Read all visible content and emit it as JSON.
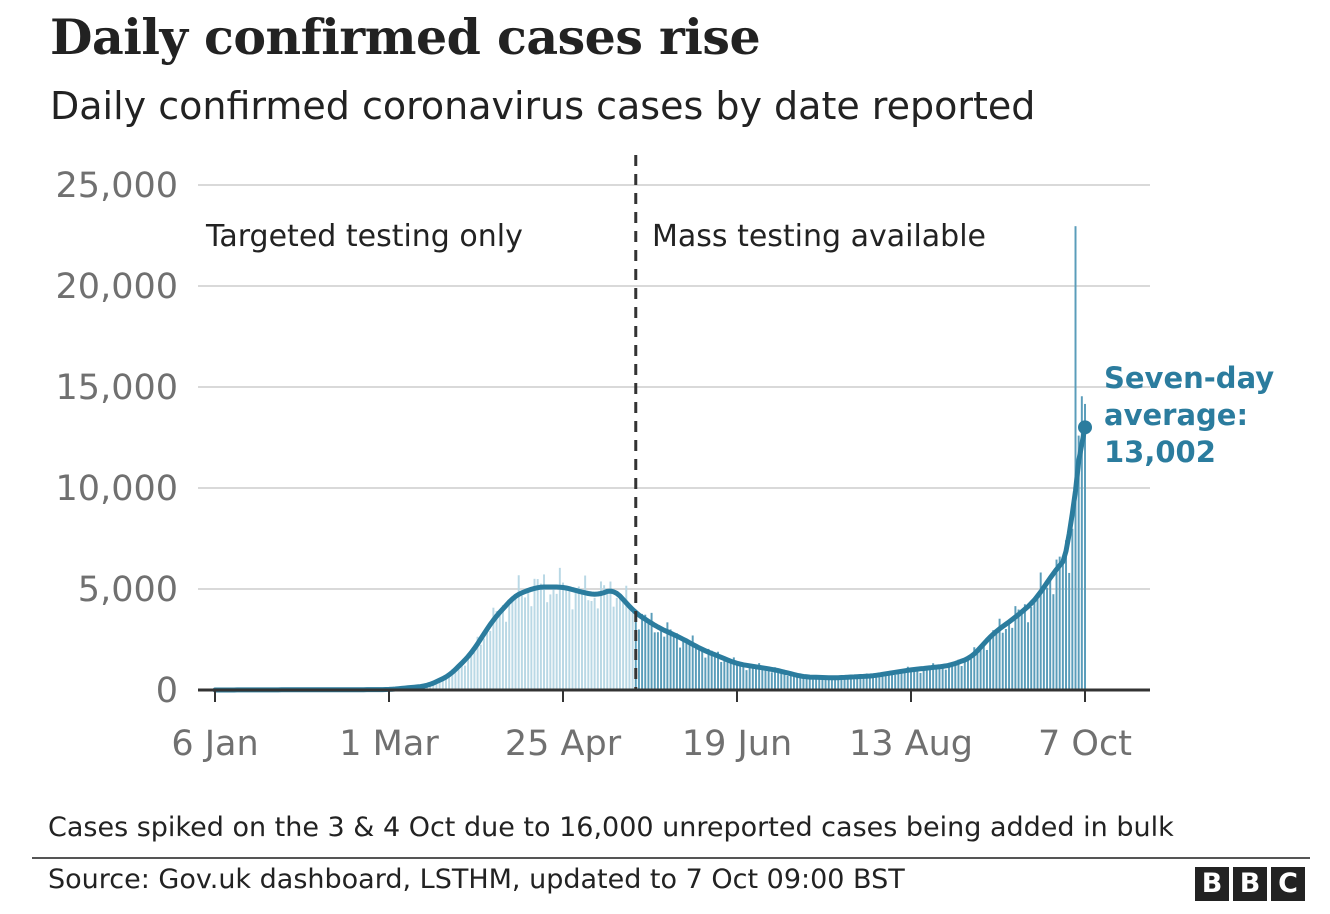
{
  "chart_data": {
    "type": "bar",
    "title": "Daily confirmed cases rise",
    "subtitle": "Daily confirmed coronavirus cases by date reported",
    "x_start": "2020-01-06",
    "x_end": "2020-10-07",
    "x_ticks": [
      {
        "date": "2020-01-06",
        "label": "6 Jan"
      },
      {
        "date": "2020-03-01",
        "label": "1 Mar"
      },
      {
        "date": "2020-04-25",
        "label": "25 Apr"
      },
      {
        "date": "2020-06-19",
        "label": "19 Jun"
      },
      {
        "date": "2020-08-13",
        "label": "13 Aug"
      },
      {
        "date": "2020-10-07",
        "label": "7 Oct"
      }
    ],
    "ylim": [
      0,
      25000
    ],
    "y_ticks": [
      {
        "value": 0,
        "label": "0"
      },
      {
        "value": 5000,
        "label": "5,000"
      },
      {
        "value": 10000,
        "label": "10,000"
      },
      {
        "value": 15000,
        "label": "15,000"
      },
      {
        "value": 20000,
        "label": "20,000"
      },
      {
        "value": 25000,
        "label": "25,000"
      }
    ],
    "grid": true,
    "divider_date": "2020-05-18",
    "phases": {
      "before": "Targeted testing only",
      "after": "Mass testing available"
    },
    "colors": {
      "before_bars": "#b9d8e5",
      "after_bars": "#5a9dba",
      "average_line": "#2b7c9e",
      "grid": "#d9d9d9",
      "axis": "#333333"
    },
    "average_anchors": [
      {
        "date": "2020-01-06",
        "value": 0
      },
      {
        "date": "2020-03-01",
        "value": 20
      },
      {
        "date": "2020-03-13",
        "value": 200
      },
      {
        "date": "2020-03-20",
        "value": 700
      },
      {
        "date": "2020-03-27",
        "value": 1800
      },
      {
        "date": "2020-04-03",
        "value": 3500
      },
      {
        "date": "2020-04-10",
        "value": 4700
      },
      {
        "date": "2020-04-17",
        "value": 5100
      },
      {
        "date": "2020-04-25",
        "value": 5100
      },
      {
        "date": "2020-05-02",
        "value": 4800
      },
      {
        "date": "2020-05-06",
        "value": 4700
      },
      {
        "date": "2020-05-11",
        "value": 5000
      },
      {
        "date": "2020-05-18",
        "value": 3800
      },
      {
        "date": "2020-05-25",
        "value": 3100
      },
      {
        "date": "2020-06-01",
        "value": 2600
      },
      {
        "date": "2020-06-08",
        "value": 2000
      },
      {
        "date": "2020-06-19",
        "value": 1300
      },
      {
        "date": "2020-07-01",
        "value": 1000
      },
      {
        "date": "2020-07-10",
        "value": 650
      },
      {
        "date": "2020-07-20",
        "value": 600
      },
      {
        "date": "2020-08-01",
        "value": 700
      },
      {
        "date": "2020-08-13",
        "value": 1000
      },
      {
        "date": "2020-08-25",
        "value": 1200
      },
      {
        "date": "2020-09-01",
        "value": 1600
      },
      {
        "date": "2020-09-08",
        "value": 2800
      },
      {
        "date": "2020-09-15",
        "value": 3600
      },
      {
        "date": "2020-09-21",
        "value": 4400
      },
      {
        "date": "2020-09-28",
        "value": 6000
      },
      {
        "date": "2020-10-02",
        "value": 6700
      },
      {
        "date": "2020-10-04",
        "value": 10500
      },
      {
        "date": "2020-10-07",
        "value": 13002
      }
    ],
    "bar_spikes": [
      {
        "date": "2020-10-04",
        "value": 22961
      },
      {
        "date": "2020-10-05",
        "value": 12594
      },
      {
        "date": "2020-10-06",
        "value": 14542
      },
      {
        "date": "2020-10-07",
        "value": 14162
      }
    ],
    "annotation": {
      "date": "2020-10-07",
      "value": 13002,
      "lines": [
        "Seven-day",
        "average:",
        "13,002"
      ]
    }
  },
  "note": "Cases spiked on the 3 & 4 Oct due to 16,000 unreported cases being added in bulk",
  "source": "Source: Gov.uk dashboard, LSTHM, updated to 7 Oct 09:00 BST",
  "logo_letters": [
    "B",
    "B",
    "C"
  ]
}
